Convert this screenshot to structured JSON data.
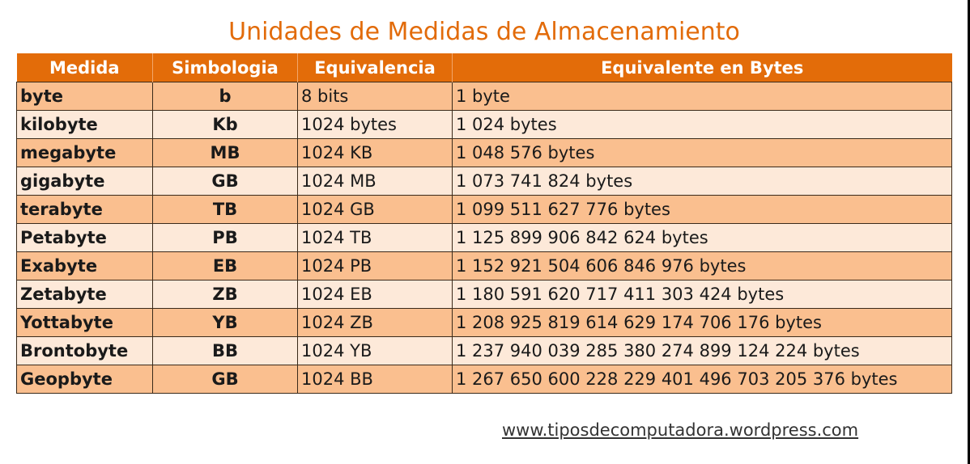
{
  "title": "Unidades de Medidas de Almacenamiento",
  "colors": {
    "title": "#E26B0A",
    "header_bg": "#E36C09",
    "row_dark": "#FABF8F",
    "row_light": "#FDE9D9"
  },
  "table": {
    "headers": [
      "Medida",
      "Simbologia",
      "Equivalencia",
      "Equivalente en Bytes"
    ],
    "rows": [
      [
        "byte",
        "b",
        "8 bits",
        "1 byte"
      ],
      [
        "kilobyte",
        "Kb",
        "1024 bytes",
        "1 024 bytes"
      ],
      [
        "megabyte",
        "MB",
        "1024 KB",
        "1 048 576 bytes"
      ],
      [
        "gigabyte",
        "GB",
        "1024 MB",
        "1 073 741 824 bytes"
      ],
      [
        "terabyte",
        "TB",
        "1024 GB",
        "1 099 511 627 776 bytes"
      ],
      [
        "Petabyte",
        "PB",
        "1024 TB",
        "1 125 899 906 842 624 bytes"
      ],
      [
        "Exabyte",
        "EB",
        "1024 PB",
        "1 152 921 504 606 846 976 bytes"
      ],
      [
        "Zetabyte",
        "ZB",
        "1024 EB",
        "1 180 591 620 717 411 303 424 bytes"
      ],
      [
        "Yottabyte",
        "YB",
        "1024 ZB",
        "1 208 925 819 614 629 174 706 176 bytes"
      ],
      [
        "Brontobyte",
        "BB",
        "1024 YB",
        "1 237 940 039 285 380 274 899 124 224 bytes"
      ],
      [
        "Geopbyte",
        "GB",
        "1024 BB",
        "1 267 650 600 228 229 401 496 703 205 376 bytes"
      ]
    ]
  },
  "footer": {
    "link_text": "www.tiposdecomputadora.wordpress.com"
  }
}
